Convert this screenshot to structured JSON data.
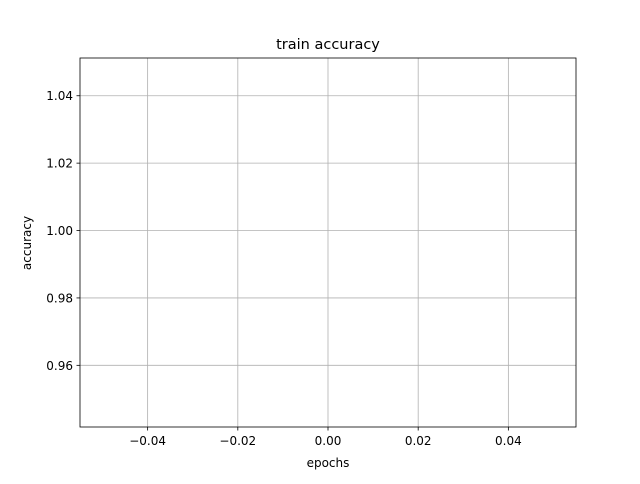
{
  "chart_data": {
    "type": "line",
    "title": "train accuracy",
    "xlabel": "epochs",
    "ylabel": "accuracy",
    "xlim": [
      -0.055,
      0.055
    ],
    "ylim": [
      0.9417,
      1.0512
    ],
    "xticks": [
      -0.04,
      -0.02,
      0.0,
      0.02,
      0.04
    ],
    "xtick_labels": [
      "−0.04",
      "−0.02",
      "0.00",
      "0.02",
      "0.04"
    ],
    "yticks": [
      0.96,
      0.98,
      1.0,
      1.02,
      1.04
    ],
    "ytick_labels": [
      "0.96",
      "0.98",
      "1.00",
      "1.02",
      "1.04"
    ],
    "grid": true,
    "series": [
      {
        "x": [],
        "y": []
      }
    ],
    "colors": {
      "axes": "#000000",
      "grid": "#b0b0b0",
      "series": "#1f77b4"
    }
  }
}
